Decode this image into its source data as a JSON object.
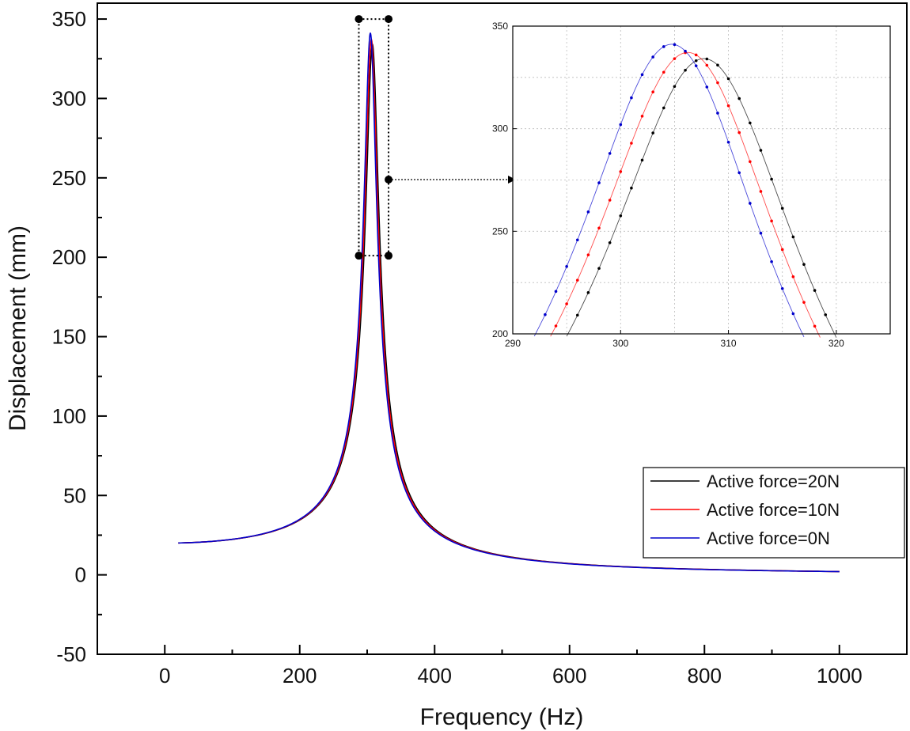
{
  "chart_data": [
    {
      "type": "line",
      "xlabel": "Frequency (Hz)",
      "ylabel": "Displacement (mm)",
      "xlim": [
        -100,
        1100
      ],
      "ylim": [
        -50,
        360
      ],
      "xticks": [
        0,
        200,
        400,
        600,
        800,
        1000
      ],
      "yticks": [
        -50,
        0,
        50,
        100,
        150,
        200,
        250,
        300,
        350
      ],
      "grid": false,
      "legend_position": "bottom-right",
      "resonance_model": {
        "static_displacement": 20,
        "f_range": [
          20,
          1000
        ],
        "peaks": [
          {
            "series": "Active force=20N",
            "f0": 308,
            "peak": 334
          },
          {
            "series": "Active force=10N",
            "f0": 306.5,
            "peak": 337
          },
          {
            "series": "Active force=0N",
            "f0": 305,
            "peak": 341
          }
        ]
      },
      "series": [
        {
          "name": "Active force=20N",
          "color": "#000000"
        },
        {
          "name": "Active force=10N",
          "color": "#ff0000"
        },
        {
          "name": "Active force=0N",
          "color": "#0000cc"
        }
      ],
      "zoom_region": {
        "x": [
          290,
          320
        ],
        "y": [
          200,
          350
        ]
      }
    },
    {
      "type": "line",
      "title": "",
      "xlim": [
        290,
        325
      ],
      "ylim": [
        200,
        350
      ],
      "xticks": [
        290,
        300,
        310,
        320
      ],
      "yticks": [
        200,
        250,
        300,
        350
      ],
      "grid": true,
      "series": [
        {
          "name": "Active force=20N",
          "color": "#000000",
          "x": [
            295,
            296,
            297,
            298,
            299,
            300,
            301,
            302,
            303,
            304,
            305,
            306,
            307,
            308,
            309,
            310,
            311,
            312,
            313,
            314,
            315,
            316,
            317,
            318,
            319,
            320
          ]
        },
        {
          "name": "Active force=10N",
          "color": "#ff0000",
          "x": [
            294,
            295,
            296,
            297,
            298,
            299,
            300,
            301,
            302,
            303,
            304,
            305,
            306,
            307,
            308,
            309,
            310,
            311,
            312,
            313,
            314,
            315,
            316,
            317,
            318,
            319
          ]
        },
        {
          "name": "Active force=0N",
          "color": "#0000cc",
          "x": [
            292,
            293,
            294,
            295,
            296,
            297,
            298,
            299,
            300,
            301,
            302,
            303,
            304,
            305,
            306,
            307,
            308,
            309,
            310,
            311,
            312,
            313,
            314,
            315,
            316,
            317,
            318
          ]
        }
      ]
    }
  ]
}
